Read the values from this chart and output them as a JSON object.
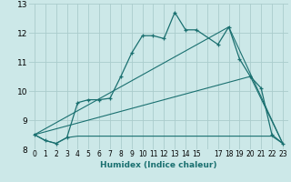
{
  "title": "",
  "xlabel": "Humidex (Indice chaleur)",
  "bg_color": "#cce8e8",
  "line_color": "#1a7070",
  "grid_color": "#aacccc",
  "xlim": [
    -0.5,
    23.5
  ],
  "ylim": [
    8,
    13
  ],
  "yticks": [
    8,
    9,
    10,
    11,
    12,
    13
  ],
  "xtick_labels": [
    "0",
    "1",
    "2",
    "3",
    "4",
    "5",
    "6",
    "7",
    "8",
    "9",
    "10",
    "11",
    "12",
    "13",
    "14",
    "15",
    " ",
    "17",
    "18",
    "19",
    "20",
    "21",
    "22",
    "23"
  ],
  "curve1_x": [
    0,
    1,
    2,
    3,
    4,
    5,
    6,
    7,
    8,
    9,
    10,
    11,
    12,
    13,
    14,
    15,
    17,
    18,
    19,
    20,
    21,
    22,
    23
  ],
  "curve1_y": [
    8.5,
    8.3,
    8.2,
    8.4,
    9.6,
    9.7,
    9.7,
    9.75,
    10.5,
    11.3,
    11.9,
    11.9,
    11.8,
    12.7,
    12.1,
    12.1,
    11.6,
    12.2,
    11.1,
    10.5,
    10.1,
    8.5,
    8.2
  ],
  "curve2_x": [
    0,
    1,
    2,
    3,
    4,
    5,
    6,
    7,
    8,
    9,
    10,
    11,
    12,
    13,
    14,
    15,
    17,
    18,
    19,
    20,
    21,
    22,
    23
  ],
  "curve2_y": [
    8.5,
    8.3,
    8.2,
    8.4,
    8.45,
    8.45,
    8.45,
    8.45,
    8.45,
    8.45,
    8.45,
    8.45,
    8.45,
    8.45,
    8.45,
    8.45,
    8.45,
    8.45,
    8.45,
    8.45,
    8.45,
    8.45,
    8.2
  ],
  "curve3_x": [
    0,
    18,
    23
  ],
  "curve3_y": [
    8.5,
    12.2,
    8.2
  ],
  "curve4_x": [
    0,
    20,
    23
  ],
  "curve4_y": [
    8.5,
    10.5,
    8.2
  ]
}
